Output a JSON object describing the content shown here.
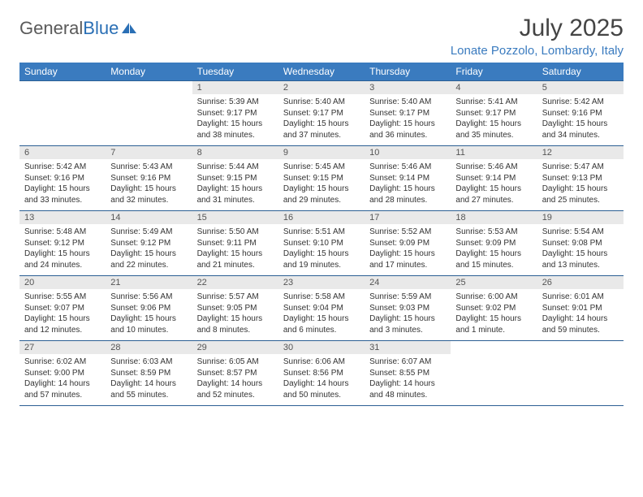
{
  "brand": {
    "name_gray": "General",
    "name_blue": "Blue"
  },
  "title": {
    "month": "July 2025",
    "location": "Lonate Pozzolo, Lombardy, Italy"
  },
  "colors": {
    "header_bg": "#3a7bbf",
    "header_text": "#ffffff",
    "daynum_bg": "#e9e9e9",
    "daynum_text": "#555555",
    "border": "#2b5f93",
    "location_text": "#3a7bbf",
    "logo_gray": "#5a5a5a"
  },
  "font": {
    "family": "Arial",
    "head_size_pt": 9,
    "body_size_pt": 7.5,
    "month_size_pt": 22,
    "location_size_pt": 11
  },
  "calendar": {
    "type": "table",
    "columns": [
      "Sunday",
      "Monday",
      "Tuesday",
      "Wednesday",
      "Thursday",
      "Friday",
      "Saturday"
    ],
    "weeks": [
      [
        {
          "day": "",
          "sunrise": "",
          "sunset": "",
          "daylight": ""
        },
        {
          "day": "",
          "sunrise": "",
          "sunset": "",
          "daylight": ""
        },
        {
          "day": "1",
          "sunrise": "Sunrise: 5:39 AM",
          "sunset": "Sunset: 9:17 PM",
          "daylight": "Daylight: 15 hours and 38 minutes."
        },
        {
          "day": "2",
          "sunrise": "Sunrise: 5:40 AM",
          "sunset": "Sunset: 9:17 PM",
          "daylight": "Daylight: 15 hours and 37 minutes."
        },
        {
          "day": "3",
          "sunrise": "Sunrise: 5:40 AM",
          "sunset": "Sunset: 9:17 PM",
          "daylight": "Daylight: 15 hours and 36 minutes."
        },
        {
          "day": "4",
          "sunrise": "Sunrise: 5:41 AM",
          "sunset": "Sunset: 9:17 PM",
          "daylight": "Daylight: 15 hours and 35 minutes."
        },
        {
          "day": "5",
          "sunrise": "Sunrise: 5:42 AM",
          "sunset": "Sunset: 9:16 PM",
          "daylight": "Daylight: 15 hours and 34 minutes."
        }
      ],
      [
        {
          "day": "6",
          "sunrise": "Sunrise: 5:42 AM",
          "sunset": "Sunset: 9:16 PM",
          "daylight": "Daylight: 15 hours and 33 minutes."
        },
        {
          "day": "7",
          "sunrise": "Sunrise: 5:43 AM",
          "sunset": "Sunset: 9:16 PM",
          "daylight": "Daylight: 15 hours and 32 minutes."
        },
        {
          "day": "8",
          "sunrise": "Sunrise: 5:44 AM",
          "sunset": "Sunset: 9:15 PM",
          "daylight": "Daylight: 15 hours and 31 minutes."
        },
        {
          "day": "9",
          "sunrise": "Sunrise: 5:45 AM",
          "sunset": "Sunset: 9:15 PM",
          "daylight": "Daylight: 15 hours and 29 minutes."
        },
        {
          "day": "10",
          "sunrise": "Sunrise: 5:46 AM",
          "sunset": "Sunset: 9:14 PM",
          "daylight": "Daylight: 15 hours and 28 minutes."
        },
        {
          "day": "11",
          "sunrise": "Sunrise: 5:46 AM",
          "sunset": "Sunset: 9:14 PM",
          "daylight": "Daylight: 15 hours and 27 minutes."
        },
        {
          "day": "12",
          "sunrise": "Sunrise: 5:47 AM",
          "sunset": "Sunset: 9:13 PM",
          "daylight": "Daylight: 15 hours and 25 minutes."
        }
      ],
      [
        {
          "day": "13",
          "sunrise": "Sunrise: 5:48 AM",
          "sunset": "Sunset: 9:12 PM",
          "daylight": "Daylight: 15 hours and 24 minutes."
        },
        {
          "day": "14",
          "sunrise": "Sunrise: 5:49 AM",
          "sunset": "Sunset: 9:12 PM",
          "daylight": "Daylight: 15 hours and 22 minutes."
        },
        {
          "day": "15",
          "sunrise": "Sunrise: 5:50 AM",
          "sunset": "Sunset: 9:11 PM",
          "daylight": "Daylight: 15 hours and 21 minutes."
        },
        {
          "day": "16",
          "sunrise": "Sunrise: 5:51 AM",
          "sunset": "Sunset: 9:10 PM",
          "daylight": "Daylight: 15 hours and 19 minutes."
        },
        {
          "day": "17",
          "sunrise": "Sunrise: 5:52 AM",
          "sunset": "Sunset: 9:09 PM",
          "daylight": "Daylight: 15 hours and 17 minutes."
        },
        {
          "day": "18",
          "sunrise": "Sunrise: 5:53 AM",
          "sunset": "Sunset: 9:09 PM",
          "daylight": "Daylight: 15 hours and 15 minutes."
        },
        {
          "day": "19",
          "sunrise": "Sunrise: 5:54 AM",
          "sunset": "Sunset: 9:08 PM",
          "daylight": "Daylight: 15 hours and 13 minutes."
        }
      ],
      [
        {
          "day": "20",
          "sunrise": "Sunrise: 5:55 AM",
          "sunset": "Sunset: 9:07 PM",
          "daylight": "Daylight: 15 hours and 12 minutes."
        },
        {
          "day": "21",
          "sunrise": "Sunrise: 5:56 AM",
          "sunset": "Sunset: 9:06 PM",
          "daylight": "Daylight: 15 hours and 10 minutes."
        },
        {
          "day": "22",
          "sunrise": "Sunrise: 5:57 AM",
          "sunset": "Sunset: 9:05 PM",
          "daylight": "Daylight: 15 hours and 8 minutes."
        },
        {
          "day": "23",
          "sunrise": "Sunrise: 5:58 AM",
          "sunset": "Sunset: 9:04 PM",
          "daylight": "Daylight: 15 hours and 6 minutes."
        },
        {
          "day": "24",
          "sunrise": "Sunrise: 5:59 AM",
          "sunset": "Sunset: 9:03 PM",
          "daylight": "Daylight: 15 hours and 3 minutes."
        },
        {
          "day": "25",
          "sunrise": "Sunrise: 6:00 AM",
          "sunset": "Sunset: 9:02 PM",
          "daylight": "Daylight: 15 hours and 1 minute."
        },
        {
          "day": "26",
          "sunrise": "Sunrise: 6:01 AM",
          "sunset": "Sunset: 9:01 PM",
          "daylight": "Daylight: 14 hours and 59 minutes."
        }
      ],
      [
        {
          "day": "27",
          "sunrise": "Sunrise: 6:02 AM",
          "sunset": "Sunset: 9:00 PM",
          "daylight": "Daylight: 14 hours and 57 minutes."
        },
        {
          "day": "28",
          "sunrise": "Sunrise: 6:03 AM",
          "sunset": "Sunset: 8:59 PM",
          "daylight": "Daylight: 14 hours and 55 minutes."
        },
        {
          "day": "29",
          "sunrise": "Sunrise: 6:05 AM",
          "sunset": "Sunset: 8:57 PM",
          "daylight": "Daylight: 14 hours and 52 minutes."
        },
        {
          "day": "30",
          "sunrise": "Sunrise: 6:06 AM",
          "sunset": "Sunset: 8:56 PM",
          "daylight": "Daylight: 14 hours and 50 minutes."
        },
        {
          "day": "31",
          "sunrise": "Sunrise: 6:07 AM",
          "sunset": "Sunset: 8:55 PM",
          "daylight": "Daylight: 14 hours and 48 minutes."
        },
        {
          "day": "",
          "sunrise": "",
          "sunset": "",
          "daylight": ""
        },
        {
          "day": "",
          "sunrise": "",
          "sunset": "",
          "daylight": ""
        }
      ]
    ]
  }
}
